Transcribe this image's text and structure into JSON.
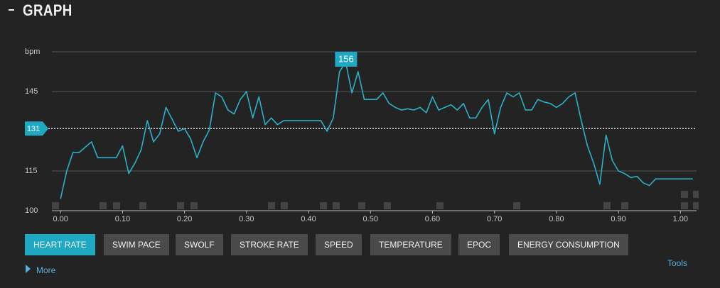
{
  "header": {
    "title": "GRAPH"
  },
  "chart_data": {
    "type": "line",
    "color": "#2bb0c8",
    "x": [
      0.0,
      0.01,
      0.02,
      0.03,
      0.04,
      0.05,
      0.06,
      0.07,
      0.08,
      0.09,
      0.1,
      0.11,
      0.12,
      0.13,
      0.14,
      0.15,
      0.16,
      0.17,
      0.18,
      0.19,
      0.2,
      0.21,
      0.22,
      0.23,
      0.24,
      0.25,
      0.26,
      0.27,
      0.28,
      0.29,
      0.3,
      0.31,
      0.32,
      0.33,
      0.34,
      0.35,
      0.36,
      0.37,
      0.38,
      0.39,
      0.4,
      0.41,
      0.42,
      0.43,
      0.44,
      0.45,
      0.46,
      0.47,
      0.48,
      0.49,
      0.5,
      0.51,
      0.52,
      0.53,
      0.54,
      0.55,
      0.56,
      0.57,
      0.58,
      0.59,
      0.6,
      0.61,
      0.62,
      0.63,
      0.64,
      0.65,
      0.66,
      0.67,
      0.68,
      0.69,
      0.7,
      0.71,
      0.72,
      0.73,
      0.74,
      0.75,
      0.76,
      0.77,
      0.78,
      0.79,
      0.8,
      0.81,
      0.82,
      0.83,
      0.84,
      0.85,
      0.86,
      0.87,
      0.88,
      0.89,
      0.9,
      0.91,
      0.92,
      0.93,
      0.94,
      0.95,
      0.96,
      0.97,
      0.98,
      0.99,
      1.0,
      1.01,
      1.02
    ],
    "values": [
      104.5,
      115,
      122,
      122,
      124,
      126,
      120,
      120,
      120,
      120,
      124.5,
      114,
      118,
      123,
      134,
      126,
      129,
      139,
      134.5,
      130,
      131,
      127,
      120,
      126,
      130.5,
      144.5,
      143,
      138,
      136.5,
      142,
      145,
      135,
      143,
      132.5,
      135,
      132.5,
      134,
      134,
      134,
      134,
      134,
      134,
      134,
      130,
      135,
      152.5,
      156,
      144.5,
      152.5,
      142,
      142,
      142,
      144.5,
      140.5,
      139,
      138,
      138.5,
      138,
      139,
      137,
      143,
      138,
      139,
      140,
      138,
      140.5,
      135,
      135,
      139,
      142,
      129,
      139,
      144.5,
      143,
      144.5,
      138,
      138,
      142,
      141,
      140.5,
      139,
      140.5,
      143,
      144.5,
      134,
      124.5,
      118,
      110,
      128.5,
      119,
      115,
      114,
      112.5,
      113,
      110.5,
      109.5,
      112,
      112,
      112,
      112,
      112,
      112,
      112
    ],
    "xlim": [
      -0.014,
      1.026
    ],
    "ylim": [
      100,
      160
    ],
    "xticks": [
      {
        "value": 0,
        "label": "0.00"
      },
      {
        "value": 0.1,
        "label": "0.10"
      },
      {
        "value": 0.2,
        "label": "0.20"
      },
      {
        "value": 0.3,
        "label": "0.30"
      },
      {
        "value": 0.4,
        "label": "0.40"
      },
      {
        "value": 0.5,
        "label": "0.50"
      },
      {
        "value": 0.6,
        "label": "0.60"
      },
      {
        "value": 0.7,
        "label": "0.70"
      },
      {
        "value": 0.8,
        "label": "0.80"
      },
      {
        "value": 0.9,
        "label": "0.90"
      },
      {
        "value": 1,
        "label": "1.00"
      }
    ],
    "yticks": [
      100,
      115,
      145,
      {
        "value": 160,
        "label": "bpm"
      }
    ],
    "grid": true,
    "average": 131,
    "peak": 156
  },
  "buttons": [
    {
      "label": "HEART RATE",
      "selected": true
    },
    {
      "label": "SWIM PACE",
      "selected": false
    },
    {
      "label": "SWOLF",
      "selected": false
    },
    {
      "label": "STROKE RATE",
      "selected": false
    },
    {
      "label": "SPEED",
      "selected": false
    },
    {
      "label": "TEMPERATURE",
      "selected": false
    },
    {
      "label": "EPOC",
      "selected": false
    },
    {
      "label": "ENERGY CONSUMPTION",
      "selected": false
    }
  ],
  "more": "More",
  "tools": "Tools"
}
